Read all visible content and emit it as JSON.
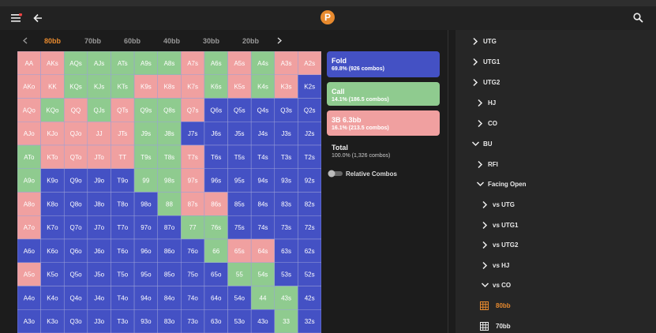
{
  "header": {
    "tabs": [
      "80bb",
      "70bb",
      "60bb",
      "40bb",
      "30bb",
      "20bb"
    ]
  },
  "grid": {
    "rows": [
      {
        "labels": [
          "AA",
          "AKs",
          "AQs",
          "AJs",
          "ATs",
          "A9s",
          "A8s",
          "A7s",
          "A6s",
          "A5s",
          "A4s",
          "A3s",
          "A2s"
        ],
        "colors": [
          "#f0a0a0",
          "#f0a0a0",
          "#8fcb8f",
          "#8fcb8f",
          "#8fcb8f",
          "#8fcb8f",
          "#8fcb8f",
          "#f0a0a0",
          "#8fcb8f",
          "#f0a0a0",
          "#8fcb8f",
          "#f0a0a0",
          "#f0a0a0"
        ]
      },
      {
        "labels": [
          "AKo",
          "KK",
          "KQs",
          "KJs",
          "KTs",
          "K9s",
          "K8s",
          "K7s",
          "K6s",
          "K5s",
          "K4s",
          "K3s",
          "K2s"
        ],
        "colors": [
          "#f0a0a0",
          "#f0a0a0",
          "#8fcb8f",
          "#8fcb8f",
          "#8fcb8f",
          "#f0a0a0",
          "#f0a0a0",
          "#f0a0a0",
          "#8fcb8f",
          "#f0a0a0",
          "#8fcb8f",
          "#f0a0a0",
          "#4451c4"
        ]
      },
      {
        "labels": [
          "AQo",
          "KQo",
          "QQ",
          "QJs",
          "QTs",
          "Q9s",
          "Q8s",
          "Q7s",
          "Q6s",
          "Q5s",
          "Q4s",
          "Q3s",
          "Q2s"
        ],
        "colors": [
          "#f0a0a0",
          "#8fcb8f",
          "#f0a0a0",
          "#8fcb8f",
          "#f0a0a0",
          "#8fcb8f",
          "#8fcb8f",
          "#f0a0a0",
          "#4451c4",
          "#4451c4",
          "#4451c4",
          "#4451c4",
          "#4451c4"
        ]
      },
      {
        "labels": [
          "AJo",
          "KJo",
          "QJo",
          "JJ",
          "JTs",
          "J9s",
          "J8s",
          "J7s",
          "J6s",
          "J5s",
          "J4s",
          "J3s",
          "J2s"
        ],
        "colors": [
          "#f0a0a0",
          "#f0a0a0",
          "#f0a0a0",
          "#f0a0a0",
          "#f0a0a0",
          "#8fcb8f",
          "#8fcb8f",
          "#4451c4",
          "#4451c4",
          "#4451c4",
          "#4451c4",
          "#4451c4",
          "#4451c4"
        ]
      },
      {
        "labels": [
          "ATo",
          "KTo",
          "QTo",
          "JTo",
          "TT",
          "T9s",
          "T8s",
          "T7s",
          "T6s",
          "T5s",
          "T4s",
          "T3s",
          "T2s"
        ],
        "colors": [
          "#8fcb8f",
          "#f0a0a0",
          "#f0a0a0",
          "#f0a0a0",
          "#f0a0a0",
          "#8fcb8f",
          "#8fcb8f",
          "#f0a0a0",
          "#4451c4",
          "#4451c4",
          "#4451c4",
          "#4451c4",
          "#4451c4"
        ]
      },
      {
        "labels": [
          "A9o",
          "K9o",
          "Q9o",
          "J9o",
          "T9o",
          "99",
          "98s",
          "97s",
          "96s",
          "95s",
          "94s",
          "93s",
          "92s"
        ],
        "colors": [
          "#8fcb8f",
          "#4451c4",
          "#4451c4",
          "#4451c4",
          "#4451c4",
          "#8fcb8f",
          "#8fcb8f",
          "#f0a0a0",
          "#4451c4",
          "#4451c4",
          "#4451c4",
          "#4451c4",
          "#4451c4"
        ]
      },
      {
        "labels": [
          "A8o",
          "K8o",
          "Q8o",
          "J8o",
          "T8o",
          "98o",
          "88",
          "87s",
          "86s",
          "85s",
          "84s",
          "83s",
          "82s"
        ],
        "colors": [
          "#f0a0a0",
          "#4451c4",
          "#4451c4",
          "#4451c4",
          "#4451c4",
          "#4451c4",
          "#8fcb8f",
          "#f0a0a0",
          "#f0a0a0",
          "#4451c4",
          "#4451c4",
          "#4451c4",
          "#4451c4"
        ]
      },
      {
        "labels": [
          "A7o",
          "K7o",
          "Q7o",
          "J7o",
          "T7o",
          "97o",
          "87o",
          "77",
          "76s",
          "75s",
          "74s",
          "73s",
          "72s"
        ],
        "colors": [
          "#f0a0a0",
          "#4451c4",
          "#4451c4",
          "#4451c4",
          "#4451c4",
          "#4451c4",
          "#4451c4",
          "#8fcb8f",
          "#8fcb8f",
          "#4451c4",
          "#4451c4",
          "#4451c4",
          "#4451c4"
        ]
      },
      {
        "labels": [
          "A6o",
          "K6o",
          "Q6o",
          "J6o",
          "T6o",
          "96o",
          "86o",
          "76o",
          "66",
          "65s",
          "64s",
          "63s",
          "62s"
        ],
        "colors": [
          "#4451c4",
          "#4451c4",
          "#4451c4",
          "#4451c4",
          "#4451c4",
          "#4451c4",
          "#4451c4",
          "#4451c4",
          "#8fcb8f",
          "#f0a0a0",
          "#f0a0a0",
          "#4451c4",
          "#4451c4"
        ]
      },
      {
        "labels": [
          "A5o",
          "K5o",
          "Q5o",
          "J5o",
          "T5o",
          "95o",
          "85o",
          "75o",
          "65o",
          "55",
          "54s",
          "53s",
          "52s"
        ],
        "colors": [
          "#f0a0a0",
          "#4451c4",
          "#4451c4",
          "#4451c4",
          "#4451c4",
          "#4451c4",
          "#4451c4",
          "#4451c4",
          "#4451c4",
          "#8fcb8f",
          "#8fcb8f",
          "#4451c4",
          "#4451c4"
        ]
      },
      {
        "labels": [
          "A4o",
          "K4o",
          "Q4o",
          "J4o",
          "T4o",
          "94o",
          "84o",
          "74o",
          "64o",
          "54o",
          "44",
          "43s",
          "42s"
        ],
        "colors": [
          "#4451c4",
          "#4451c4",
          "#4451c4",
          "#4451c4",
          "#4451c4",
          "#4451c4",
          "#4451c4",
          "#4451c4",
          "#4451c4",
          "#4451c4",
          "#8fcb8f",
          "#8fcb8f",
          "#4451c4"
        ]
      },
      {
        "labels": [
          "A3o",
          "K3o",
          "Q3o",
          "J3o",
          "T3o",
          "93o",
          "83o",
          "73o",
          "63o",
          "53o",
          "43o",
          "33",
          "32s"
        ],
        "colors": [
          "#4451c4",
          "#4451c4",
          "#4451c4",
          "#4451c4",
          "#4451c4",
          "#4451c4",
          "#4451c4",
          "#4451c4",
          "#4451c4",
          "#4451c4",
          "#4451c4",
          "#8fcb8f",
          "#4451c4"
        ]
      }
    ]
  },
  "legend": {
    "items": [
      {
        "title": "Fold",
        "detail": "69.8% (926 combos)",
        "color": "#4451c4"
      },
      {
        "title": "Call",
        "detail": "14.1% (186.5 combos)",
        "color": "#8fcb8f"
      },
      {
        "title": "3B 6.3bb",
        "detail": "16.1% (213.5 combos)",
        "color": "#f0a0a0"
      }
    ]
  },
  "total": {
    "title": "Total",
    "detail": "100.0% (1,326 combos)"
  },
  "toggle": {
    "label": "Relative Combos"
  },
  "sidebar": {
    "items": [
      "UTG",
      "UTG1",
      "UTG2",
      "HJ",
      "CO",
      "BU",
      "RFI",
      "Facing Open",
      "vs UTG",
      "vs UTG1",
      "vs UTG2",
      "vs HJ",
      "vs CO",
      "80bb",
      "70bb"
    ]
  }
}
